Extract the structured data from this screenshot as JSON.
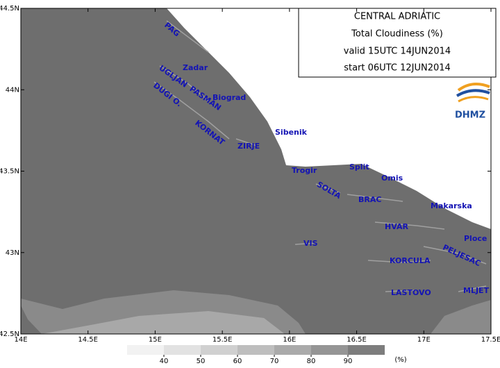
{
  "header": {
    "lines": [
      "CENTRAL ADRIATIC",
      "Total Cloudiness (%)",
      "valid 15UTC 14JUN2014",
      "start 06UTC 12JUN2014"
    ],
    "logo": "DHMZ"
  },
  "axes": {
    "xticks": [
      {
        "value": 14,
        "label": "14E"
      },
      {
        "value": 14.5,
        "label": "14.5E"
      },
      {
        "value": 15,
        "label": "15E"
      },
      {
        "value": 15.5,
        "label": "15.5E"
      },
      {
        "value": 16,
        "label": "16E"
      },
      {
        "value": 16.5,
        "label": "16.5E"
      },
      {
        "value": 17,
        "label": "17E"
      },
      {
        "value": 17.5,
        "label": "17.5E"
      }
    ],
    "yticks": [
      {
        "value": 42.5,
        "label": "42.5N"
      },
      {
        "value": 43,
        "label": "43N"
      },
      {
        "value": 43.5,
        "label": "43.5N"
      },
      {
        "value": 44,
        "label": "44N"
      },
      {
        "value": 44.5,
        "label": "44.5N"
      }
    ],
    "xlim": [
      14,
      17.5
    ],
    "ylim": [
      42.5,
      44.5
    ]
  },
  "places": [
    "PAG",
    "Zadar",
    "UGLJAN",
    "PASMAN",
    "Biograd",
    "DUGI O.",
    "KORNAT",
    "Sibenik",
    "ZIRJE",
    "Trogir",
    "Split",
    "Omis",
    "SOLTA",
    "BRAC",
    "Makarska",
    "HVAR",
    "Ploce",
    "VIS",
    "PELJESAC",
    "KORCULA",
    "LASTOVO",
    "MLJET"
  ],
  "colorbar": {
    "levels": [
      40,
      50,
      60,
      70,
      80,
      90
    ],
    "unit": "(%)",
    "colors": [
      "#f2f2f2",
      "#e2e2e2",
      "#d0d0d0",
      "#bebebe",
      "#aaaaaa",
      "#959595",
      "#7d7d7d"
    ]
  }
}
